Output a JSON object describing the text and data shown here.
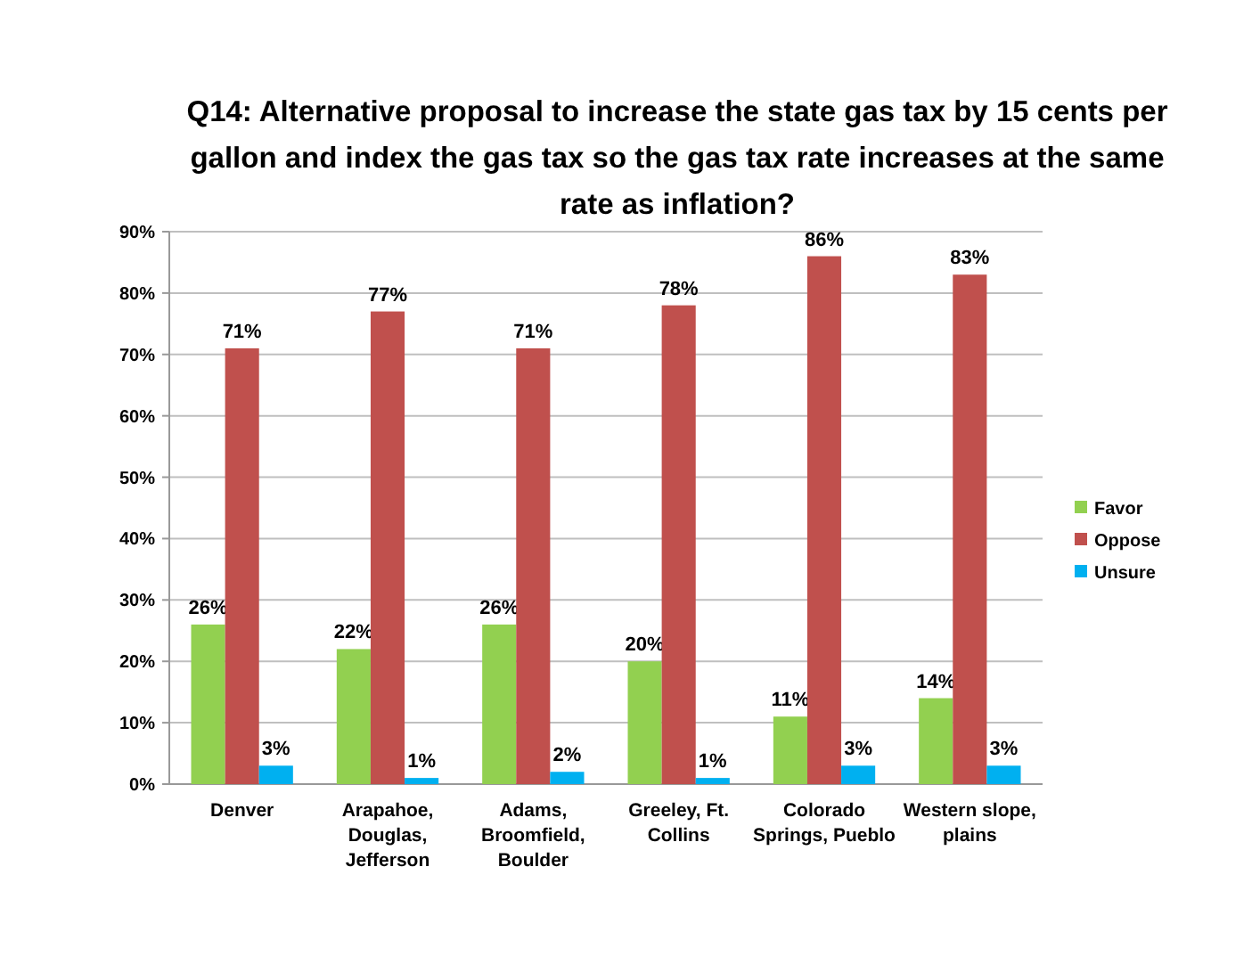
{
  "chart_data": {
    "type": "bar",
    "title": "Q14: Alternative proposal to increase the state gas tax by 15 cents per gallon and index the gas tax so the gas tax rate increases at the same rate as inflation?",
    "categories": [
      "Denver",
      "Arapahoe, Douglas, Jefferson",
      "Adams, Broomfield, Boulder",
      "Greeley, Ft. Collins",
      "Colorado Springs, Pueblo",
      "Western slope, plains"
    ],
    "series": [
      {
        "name": "Favor",
        "color": "#92d050",
        "values": [
          26,
          22,
          26,
          20,
          11,
          14
        ],
        "value_labels": [
          "26%",
          "22%",
          "26%",
          "20%",
          "11%",
          "14%"
        ]
      },
      {
        "name": "Oppose",
        "color": "#c0504d",
        "values": [
          71,
          77,
          71,
          78,
          86,
          83
        ],
        "value_labels": [
          "71%",
          "77%",
          "71%",
          "78%",
          "86%",
          "83%"
        ]
      },
      {
        "name": "Unsure",
        "color": "#00b0f0",
        "values": [
          3,
          1,
          2,
          1,
          3,
          3
        ],
        "value_labels": [
          "3%",
          "1%",
          "2%",
          "1%",
          "3%",
          "3%"
        ]
      }
    ],
    "ylim": [
      0,
      90
    ],
    "yticks": [
      {
        "value": 0,
        "label": "0%"
      },
      {
        "value": 10,
        "label": "10%"
      },
      {
        "value": 20,
        "label": "20%"
      },
      {
        "value": 30,
        "label": "30%"
      },
      {
        "value": 40,
        "label": "40%"
      },
      {
        "value": 50,
        "label": "50%"
      },
      {
        "value": 60,
        "label": "60%"
      },
      {
        "value": 70,
        "label": "70%"
      },
      {
        "value": 80,
        "label": "80%"
      },
      {
        "value": 90,
        "label": "90%"
      }
    ],
    "grid": "y",
    "legend": "right"
  }
}
